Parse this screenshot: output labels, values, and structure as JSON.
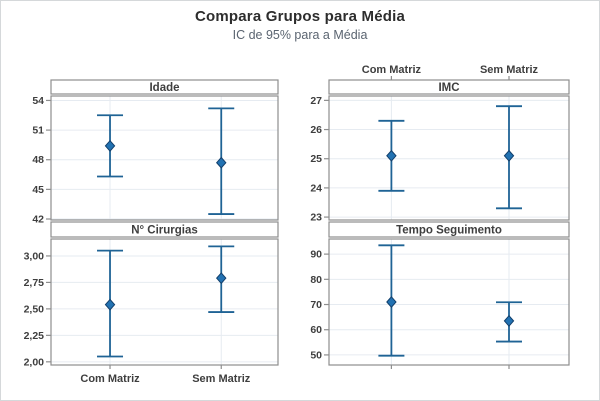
{
  "window": {
    "title": "Compara Grupos para Média",
    "subtitle": "IC de 95% para a Média"
  },
  "colors": {
    "interval_line": "#1f6395",
    "marker_fill": "#2272b2",
    "marker_stroke": "#123f6b",
    "gridline": "#e6ebf1",
    "panel_border": "#8e8e8e",
    "band_fill": "#ffffff",
    "tick_text": "#3e3e3e",
    "title_text": "#2d2d2d",
    "subtitle_text": "#5a6470",
    "outer_border": "#d5d8da"
  },
  "chart_data": {
    "type": "interval-plot",
    "title": "Compara Grupos para Média",
    "subtitle": "IC de 95% para a Média",
    "ci_level": "95%",
    "categories": [
      "Com Matriz",
      "Sem Matriz"
    ],
    "layout": {
      "grid": "2x2",
      "gridlines": "on",
      "top_axis_labels_column": "right",
      "bottom_axis_labels_column": "left"
    },
    "panels": [
      {
        "id": "idade",
        "title": "Idade",
        "position": {
          "col": "left",
          "row": "top"
        },
        "ylim": [
          41.9,
          54.45
        ],
        "yticks": [
          {
            "value": 42,
            "label": "42"
          },
          {
            "value": 45,
            "label": "45"
          },
          {
            "value": 48,
            "label": "48"
          },
          {
            "value": 51,
            "label": "51"
          },
          {
            "value": 54,
            "label": "54"
          }
        ],
        "series": [
          {
            "category": "Com Matriz",
            "mean": 49.4,
            "ci_low": 46.3,
            "ci_high": 52.5
          },
          {
            "category": "Sem Matriz",
            "mean": 47.7,
            "ci_low": 42.5,
            "ci_high": 53.2
          }
        ]
      },
      {
        "id": "imc",
        "title": "IMC",
        "position": {
          "col": "right",
          "row": "top"
        },
        "ylim": [
          22.9,
          27.15
        ],
        "yticks": [
          {
            "value": 23,
            "label": "23"
          },
          {
            "value": 24,
            "label": "24"
          },
          {
            "value": 25,
            "label": "25"
          },
          {
            "value": 26,
            "label": "26"
          },
          {
            "value": 27,
            "label": "27"
          }
        ],
        "series": [
          {
            "category": "Com Matriz",
            "mean": 25.1,
            "ci_low": 23.9,
            "ci_high": 26.3
          },
          {
            "category": "Sem Matriz",
            "mean": 25.1,
            "ci_low": 23.3,
            "ci_high": 26.8
          }
        ]
      },
      {
        "id": "cirurgias",
        "title": "N° Cirurgias",
        "position": {
          "col": "left",
          "row": "bottom"
        },
        "ylim": [
          1.97,
          3.16
        ],
        "yticks": [
          {
            "value": 2.0,
            "label": "2,00"
          },
          {
            "value": 2.25,
            "label": "2,25"
          },
          {
            "value": 2.5,
            "label": "2,50"
          },
          {
            "value": 2.75,
            "label": "2,75"
          },
          {
            "value": 3.0,
            "label": "3,00"
          }
        ],
        "series": [
          {
            "category": "Com Matriz",
            "mean": 2.54,
            "ci_low": 2.05,
            "ci_high": 3.05
          },
          {
            "category": "Sem Matriz",
            "mean": 2.79,
            "ci_low": 2.47,
            "ci_high": 3.09
          }
        ]
      },
      {
        "id": "tempo",
        "title": "Tempo Seguimento",
        "position": {
          "col": "right",
          "row": "bottom"
        },
        "ylim": [
          46,
          96
        ],
        "yticks": [
          {
            "value": 50,
            "label": "50"
          },
          {
            "value": 60,
            "label": "60"
          },
          {
            "value": 70,
            "label": "70"
          },
          {
            "value": 80,
            "label": "80"
          },
          {
            "value": 90,
            "label": "90"
          }
        ],
        "series": [
          {
            "category": "Com Matriz",
            "mean": 71.0,
            "ci_low": 49.7,
            "ci_high": 93.5
          },
          {
            "category": "Sem Matriz",
            "mean": 63.5,
            "ci_low": 55.3,
            "ci_high": 70.9
          }
        ]
      }
    ]
  }
}
